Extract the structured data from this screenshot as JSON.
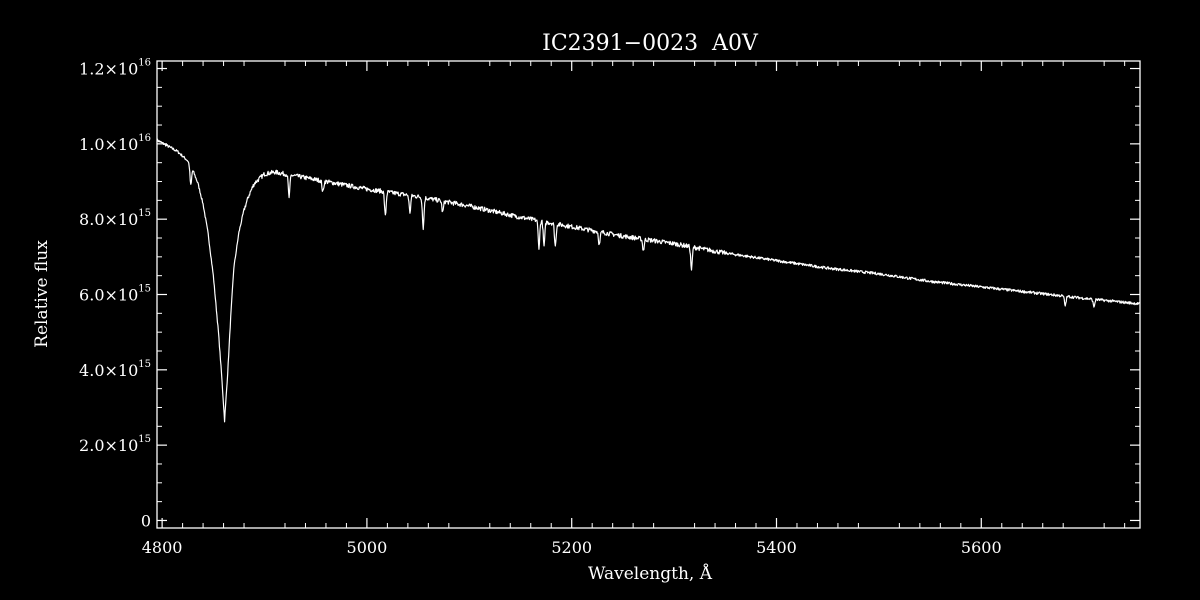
{
  "colors": {
    "background": "#000000",
    "foreground": "#ffffff"
  },
  "chart_data": {
    "type": "line",
    "title": "IC2391−0023  A0V",
    "xlabel": "Wavelength, Å",
    "ylabel": "Relative flux",
    "xlim": [
      4795,
      5755
    ],
    "ylim": [
      -200000000000000.0,
      1.22e+16
    ],
    "x_ticks": [
      {
        "value": 4800,
        "label": "4800"
      },
      {
        "value": 5000,
        "label": "5000"
      },
      {
        "value": 5200,
        "label": "5200"
      },
      {
        "value": 5400,
        "label": "5400"
      },
      {
        "value": 5600,
        "label": "5600"
      }
    ],
    "y_ticks": [
      {
        "value": 0,
        "mant": "0",
        "exp": ""
      },
      {
        "value": 2000000000000000.0,
        "mant": "2.0×10",
        "exp": "15"
      },
      {
        "value": 4000000000000000.0,
        "mant": "4.0×10",
        "exp": "15"
      },
      {
        "value": 6000000000000000.0,
        "mant": "6.0×10",
        "exp": "15"
      },
      {
        "value": 8000000000000000.0,
        "mant": "8.0×10",
        "exp": "15"
      },
      {
        "value": 1e+16,
        "mant": "1.0×10",
        "exp": "16"
      },
      {
        "value": 1.2e+16,
        "mant": "1.2×10",
        "exp": "16"
      }
    ],
    "grid": false,
    "legend": "none",
    "series": [
      {
        "x": [
          4795,
          4805,
          4815,
          4825,
          4830,
          4835,
          4840,
          4845,
          4850,
          4855,
          4858,
          4861,
          4864,
          4867,
          4870,
          4875,
          4880,
          4885,
          4890,
          4900,
          4910,
          4920,
          4940,
          4960,
          4980,
          5000,
          5050,
          5100,
          5150,
          5200,
          5250,
          5300,
          5350,
          5400,
          5450,
          5500,
          5550,
          5600,
          5650,
          5700,
          5755
        ],
        "y": [
          1.01e+16,
          9950000000000000.0,
          9800000000000000.0,
          9550000000000000.0,
          9300000000000000.0,
          8950000000000000.0,
          8400000000000000.0,
          7600000000000000.0,
          6500000000000000.0,
          5000000000000000.0,
          3900000000000000.0,
          2650000000000000.0,
          3900000000000000.0,
          5400000000000000.0,
          6700000000000000.0,
          7650000000000000.0,
          8250000000000000.0,
          8650000000000000.0,
          8950000000000000.0,
          9200000000000000.0,
          9250000000000000.0,
          9200000000000000.0,
          9100000000000000.0,
          9000000000000000.0,
          8900000000000000.0,
          8800000000000000.0,
          8600000000000000.0,
          8350000000000000.0,
          8050000000000000.0,
          7800000000000000.0,
          7550000000000000.0,
          7350000000000000.0,
          7100000000000000.0,
          6900000000000000.0,
          6700000000000000.0,
          6550000000000000.0,
          6350000000000000.0,
          6200000000000000.0,
          6050000000000000.0,
          5900000000000000.0,
          5750000000000000.0
        ]
      }
    ],
    "absorption_lines": [
      {
        "x": 4828,
        "depth": 500000000000000.0
      },
      {
        "x": 4924,
        "depth": 600000000000000.0
      },
      {
        "x": 4957,
        "depth": 300000000000000.0
      },
      {
        "x": 5018,
        "depth": 650000000000000.0
      },
      {
        "x": 5042,
        "depth": 450000000000000.0
      },
      {
        "x": 5055,
        "depth": 800000000000000.0
      },
      {
        "x": 5074,
        "depth": 300000000000000.0
      },
      {
        "x": 5168,
        "depth": 700000000000000.0
      },
      {
        "x": 5173,
        "depth": 650000000000000.0
      },
      {
        "x": 5184,
        "depth": 600000000000000.0
      },
      {
        "x": 5227,
        "depth": 350000000000000.0
      },
      {
        "x": 5270,
        "depth": 300000000000000.0
      },
      {
        "x": 5317,
        "depth": 600000000000000.0
      },
      {
        "x": 5682,
        "depth": 250000000000000.0
      },
      {
        "x": 5710,
        "depth": 200000000000000.0
      }
    ]
  }
}
